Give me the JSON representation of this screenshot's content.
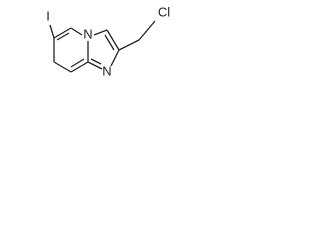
{
  "atoms": [
    {
      "label": "I"
    },
    {
      "label": "N"
    },
    {
      "label": "N"
    },
    {
      "label": "Cl"
    }
  ]
}
